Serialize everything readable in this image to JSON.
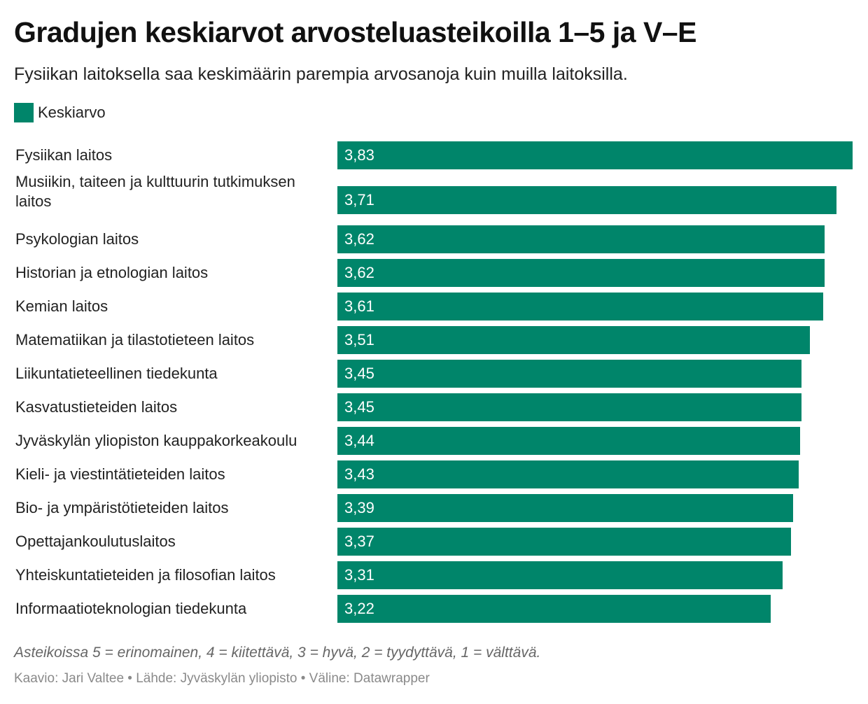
{
  "header": {
    "title": "Gradujen keskiarvot arvosteluasteikoilla 1–5 ja V–E",
    "subtitle": "Fysiikan laitoksella saa keskimäärin parempia arvosanoja kuin muilla laitoksilla."
  },
  "legend": {
    "label": "Keskiarvo"
  },
  "colors": {
    "bar": "#00856a"
  },
  "footer": {
    "note": "Asteikoissa 5 = erinomainen, 4 = kiitettävä, 3 = hyvä, 2 = tyydyttävä, 1 = välttävä.",
    "credits": "Kaavio: Jari Valtee • Lähde: Jyväskylän yliopisto • Väline: Datawrapper"
  },
  "chart_data": {
    "type": "bar",
    "orientation": "horizontal",
    "title": "Gradujen keskiarvot arvosteluasteikoilla 1–5 ja V–E",
    "subtitle": "Fysiikan laitoksella saa keskimäärin parempia arvosanoja kuin muilla laitoksilla.",
    "categories": [
      "Fysiikan laitos",
      "Musiikin, taiteen ja kulttuurin tutkimuksen laitos",
      "Psykologian laitos",
      "Historian ja etnologian laitos",
      "Kemian laitos",
      "Matematiikan ja tilastotieteen laitos",
      "Liikuntatieteellinen tiedekunta",
      "Kasvatustieteiden laitos",
      "Jyväskylän yliopiston kauppakorkeakoulu",
      "Kieli- ja viestintätieteiden laitos",
      "Bio- ja ympäristötieteiden laitos",
      "Opettajankoulutuslaitos",
      "Yhteiskuntatieteiden ja filosofian laitos",
      "Informaatioteknologian tiedekunta"
    ],
    "series": [
      {
        "name": "Keskiarvo",
        "values": [
          3.83,
          3.71,
          3.62,
          3.62,
          3.61,
          3.51,
          3.45,
          3.45,
          3.44,
          3.43,
          3.39,
          3.37,
          3.31,
          3.22
        ],
        "labels": [
          "3,83",
          "3,71",
          "3,62",
          "3,62",
          "3,61",
          "3,51",
          "3,45",
          "3,45",
          "3,44",
          "3,43",
          "3,39",
          "3,37",
          "3,31",
          "3,22"
        ]
      }
    ],
    "xlim": [
      0,
      3.83
    ],
    "grid": false,
    "legend_position": "top-left"
  }
}
